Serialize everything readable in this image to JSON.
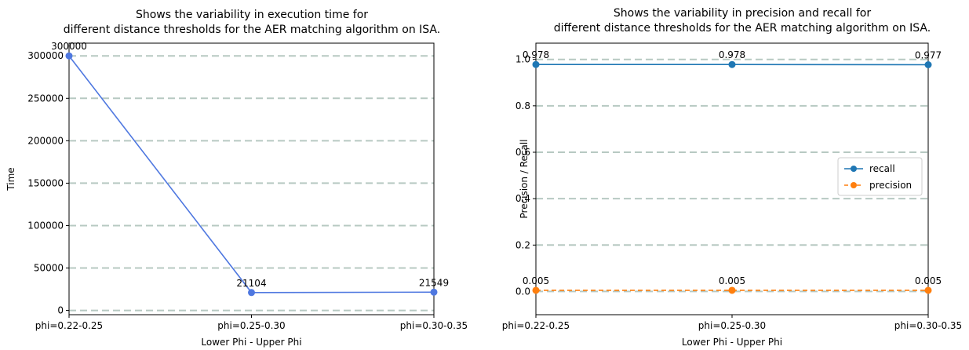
{
  "chart_data": [
    {
      "type": "line",
      "title_lines": [
        "Shows the variability in execution time for",
        "different distance thresholds for the AER matching algorithm on ISA."
      ],
      "xlabel": "Lower Phi - Upper Phi",
      "ylabel": "Time",
      "categories": [
        "phi=0.22-0.25",
        "phi=0.25-0.30",
        "phi=0.30-0.35"
      ],
      "yticks": [
        0,
        50000,
        100000,
        150000,
        200000,
        250000,
        300000
      ],
      "ylim": [
        -5000,
        315000
      ],
      "grid": "y-dashed",
      "grid_color": "#b7c9c2",
      "series": [
        {
          "values": [
            300000,
            21104,
            21549
          ],
          "value_labels": [
            "300000",
            "21104",
            "21549"
          ],
          "color": "#4f78e0",
          "linestyle": "solid",
          "marker": "circle"
        }
      ]
    },
    {
      "type": "line",
      "title_lines": [
        "Shows the variability in precision and recall for",
        "different distance thresholds for the AER matching algorithm on ISA."
      ],
      "xlabel": "Lower Phi - Upper Phi",
      "ylabel": "Precision / Recall",
      "categories": [
        "phi=0.22-0.25",
        "phi=0.25-0.30",
        "phi=0.30-0.35"
      ],
      "yticks": [
        "0.0",
        "0.2",
        "0.4",
        "0.6",
        "0.8",
        "1.0"
      ],
      "ylim": [
        -0.1,
        1.07
      ],
      "grid": "y-dashed",
      "grid_color": "#b7c9c2",
      "legend_position": "right",
      "series": [
        {
          "name": "recall",
          "values": [
            0.978,
            0.978,
            0.977
          ],
          "value_labels": [
            "0.978",
            "0.978",
            "0.977"
          ],
          "color": "#1f77b4",
          "linestyle": "solid",
          "marker": "circle"
        },
        {
          "name": "precision",
          "values": [
            0.005,
            0.005,
            0.005
          ],
          "value_labels": [
            "0.005",
            "0.005",
            "0.005"
          ],
          "color": "#ff7f0e",
          "linestyle": "dashed",
          "marker": "circle"
        }
      ]
    }
  ]
}
